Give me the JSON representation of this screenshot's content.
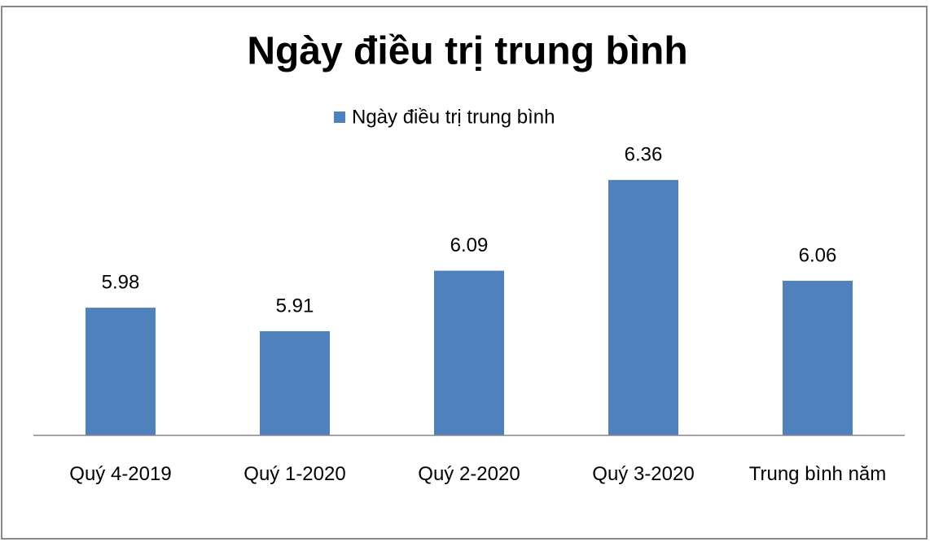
{
  "chart_data": {
    "type": "bar",
    "title": "Ngày điều trị trung bình",
    "categories": [
      "Quý 4-2019",
      "Quý 1-2020",
      "Quý 2-2020",
      "Quý 3-2020",
      "Trung bình năm"
    ],
    "series": [
      {
        "name": "Ngày điều trị trung bình",
        "color": "#4f81bd",
        "values": [
          5.98,
          5.91,
          6.09,
          6.36,
          6.06
        ]
      }
    ],
    "ylim": [
      5.6,
      6.6
    ],
    "legend": "top"
  }
}
